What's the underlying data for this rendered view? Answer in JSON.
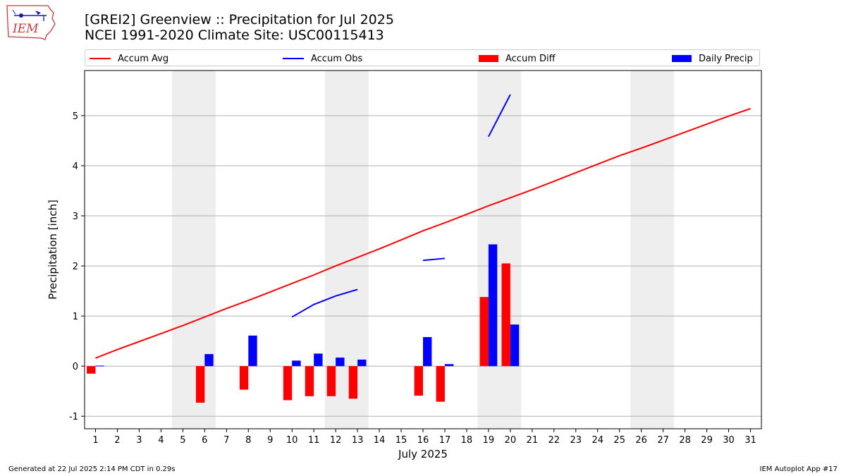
{
  "title_line1": "[GREI2] Greenview :: Precipitation for Jul 2025",
  "title_line2": "NCEI 1991-2020 Climate Site: USC00115413",
  "logo_text": "IEM",
  "footer_left": "Generated at 22 Jul 2025 2:14 PM CDT in 0.29s",
  "footer_right": "IEM Autoplot App #17",
  "legend": {
    "accum_avg": "Accum Avg",
    "accum_obs": "Accum Obs",
    "accum_diff": "Accum Diff",
    "daily_precip": "Daily Precip"
  },
  "colors": {
    "avg": "#ff0000",
    "obs": "#0000ff",
    "diff": "#ff0000",
    "daily": "#0000ff",
    "weekend": "#eeeeee",
    "grid": "#b0b0b0"
  },
  "chart_data": {
    "type": "bar",
    "xlabel": "July 2025",
    "ylabel": "Precipitation [inch]",
    "xlim": [
      0.5,
      31.5
    ],
    "ylim": [
      -1.25,
      5.9
    ],
    "yticks": [
      -1,
      0,
      1,
      2,
      3,
      4,
      5
    ],
    "x": [
      1,
      2,
      3,
      4,
      5,
      6,
      7,
      8,
      9,
      10,
      11,
      12,
      13,
      14,
      15,
      16,
      17,
      18,
      19,
      20,
      21,
      22,
      23,
      24,
      25,
      26,
      27,
      28,
      29,
      30,
      31
    ],
    "weekends": [
      [
        5,
        6
      ],
      [
        12,
        13
      ],
      [
        19,
        20
      ],
      [
        26,
        27
      ]
    ],
    "grid": "horizontal",
    "legend_placement": "top",
    "series": [
      {
        "name": "Accum Avg",
        "kind": "line",
        "values": [
          0.16,
          0.33,
          0.49,
          0.65,
          0.81,
          0.98,
          1.15,
          1.31,
          1.48,
          1.65,
          1.82,
          2.0,
          2.17,
          2.34,
          2.52,
          2.7,
          2.86,
          3.03,
          3.2,
          3.36,
          3.52,
          3.69,
          3.86,
          4.03,
          4.2,
          4.35,
          4.51,
          4.67,
          4.83,
          4.99,
          5.14
        ]
      },
      {
        "name": "Accum Obs",
        "kind": "line",
        "values": [
          null,
          null,
          null,
          null,
          null,
          null,
          null,
          null,
          null,
          0.98,
          1.23,
          1.4,
          1.53,
          null,
          null,
          2.11,
          2.15,
          null,
          4.58,
          5.42,
          null,
          null,
          null,
          null,
          null,
          null,
          null,
          null,
          null,
          null,
          null
        ]
      },
      {
        "name": "Accum Diff",
        "kind": "bar",
        "values": [
          -0.15,
          null,
          null,
          null,
          null,
          -0.73,
          null,
          -0.47,
          null,
          -0.68,
          -0.6,
          -0.6,
          -0.65,
          null,
          null,
          -0.59,
          -0.71,
          null,
          1.38,
          2.05,
          null,
          null,
          null,
          null,
          null,
          null,
          null,
          null,
          null,
          null,
          null
        ]
      },
      {
        "name": "Daily Precip",
        "kind": "bar",
        "values": [
          0.01,
          null,
          null,
          null,
          null,
          0.24,
          null,
          0.61,
          null,
          0.11,
          0.25,
          0.17,
          0.13,
          null,
          null,
          0.58,
          0.04,
          null,
          2.43,
          0.83,
          null,
          null,
          null,
          null,
          null,
          null,
          null,
          null,
          null,
          null,
          null
        ]
      }
    ]
  }
}
